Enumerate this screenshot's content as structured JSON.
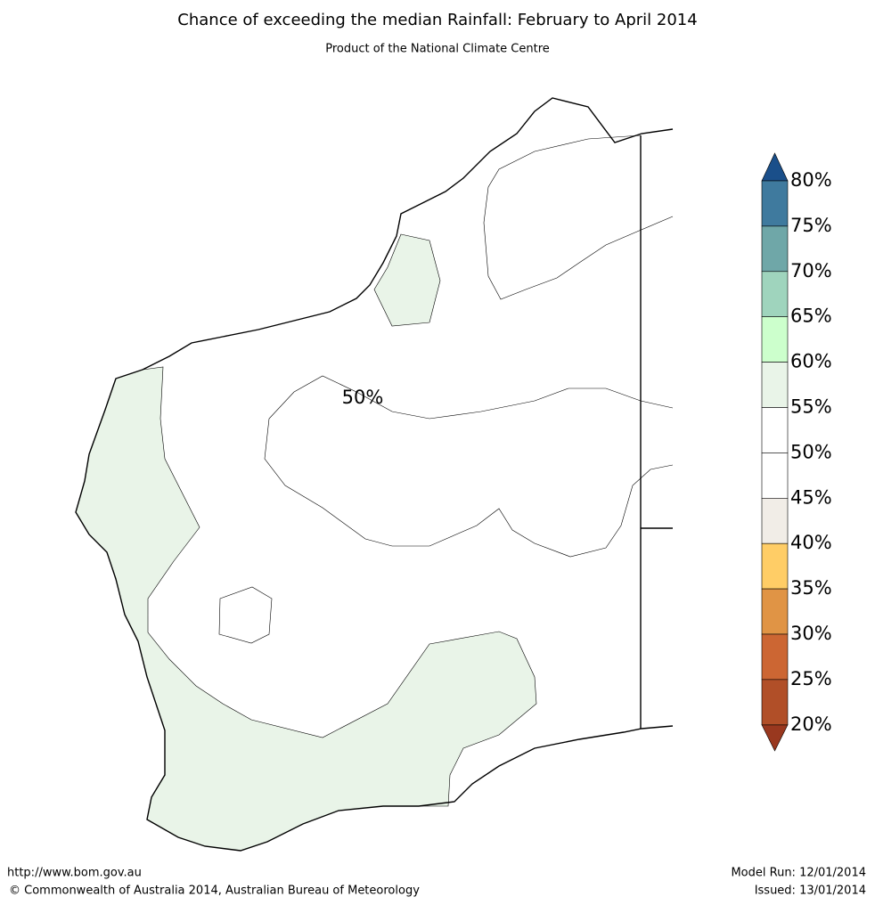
{
  "header": {
    "title": "Chance of exceeding the median Rainfall: February to April 2014",
    "subtitle": "Product of the National Climate Centre"
  },
  "map": {
    "contour_label": "50%"
  },
  "colorbar": {
    "labels": [
      "80%",
      "75%",
      "70%",
      "65%",
      "60%",
      "55%",
      "50%",
      "45%",
      "40%",
      "35%",
      "30%",
      "25%",
      "20%"
    ],
    "colors": [
      "#1a4f8a",
      "#3f7a9e",
      "#6fa7a8",
      "#9fd4bd",
      "#ccffcc",
      "#e9f4e8",
      "#ffffff",
      "#ffffff",
      "#f1ede7",
      "#ffcd66",
      "#e09445",
      "#cc6633",
      "#b14f28",
      "#99381f"
    ]
  },
  "footer": {
    "url": "http://www.bom.gov.au",
    "copyright": "©  Commonwealth of Australia 2014, Australian Bureau of Meteorology",
    "model_run": "Model Run: 12/01/2014",
    "issued": "Issued: 13/01/2014"
  }
}
